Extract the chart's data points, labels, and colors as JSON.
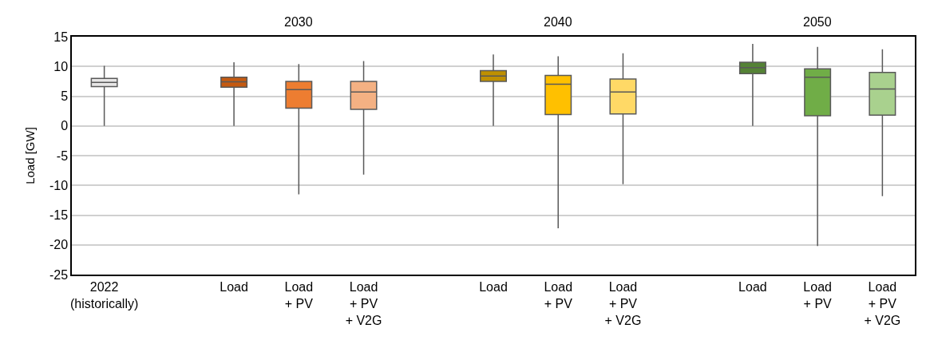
{
  "chart_data": {
    "type": "box",
    "ylabel": "Load [GW]",
    "categories": [
      "2022\n(historically)",
      null,
      "Load",
      "Load\n+ PV",
      "Load\n+ PV\n+ V2G",
      null,
      "Load",
      "Load\n+ PV",
      "Load\n+ PV\n+ V2G",
      null,
      "Load",
      "Load\n+ PV",
      "Load\n+ PV\n+ V2G"
    ],
    "boxes": [
      {
        "low": 0,
        "q1": 6.6,
        "median": 7.3,
        "q3": 8.0,
        "high": 10.1
      },
      null,
      {
        "low": 0,
        "q1": 6.5,
        "median": 7.4,
        "q3": 8.2,
        "high": 10.7
      },
      {
        "low": -11.5,
        "q1": 3.0,
        "median": 6.1,
        "q3": 7.5,
        "high": 10.4
      },
      {
        "low": -8.2,
        "q1": 2.8,
        "median": 5.7,
        "q3": 7.5,
        "high": 10.9
      },
      null,
      {
        "low": 0,
        "q1": 7.5,
        "median": 8.4,
        "q3": 9.3,
        "high": 12.0
      },
      {
        "low": -17.2,
        "q1": 1.9,
        "median": 7.0,
        "q3": 8.5,
        "high": 11.7
      },
      {
        "low": -9.8,
        "q1": 2.0,
        "median": 5.7,
        "q3": 7.9,
        "high": 12.2
      },
      null,
      {
        "low": 0,
        "q1": 8.8,
        "median": 9.8,
        "q3": 10.7,
        "high": 13.8
      },
      {
        "low": -20.2,
        "q1": 1.7,
        "median": 8.2,
        "q3": 9.6,
        "high": 13.3
      },
      {
        "low": -11.8,
        "q1": 1.8,
        "median": 6.2,
        "q3": 9.0,
        "high": 12.9
      }
    ],
    "colors": [
      "#e7e6e6",
      null,
      "#c55a11",
      "#ed7d31",
      "#f4b183",
      null,
      "#bf9000",
      "#ffc000",
      "#ffd966",
      null,
      "#548235",
      "#70ad47",
      "#a9d18e"
    ],
    "annotations": [
      "2030",
      "2040",
      "2050"
    ],
    "ylim": [
      -25,
      15
    ],
    "yticks": [
      -25,
      -20,
      -15,
      -10,
      -5,
      0,
      5,
      10,
      15
    ],
    "grid": "y"
  }
}
